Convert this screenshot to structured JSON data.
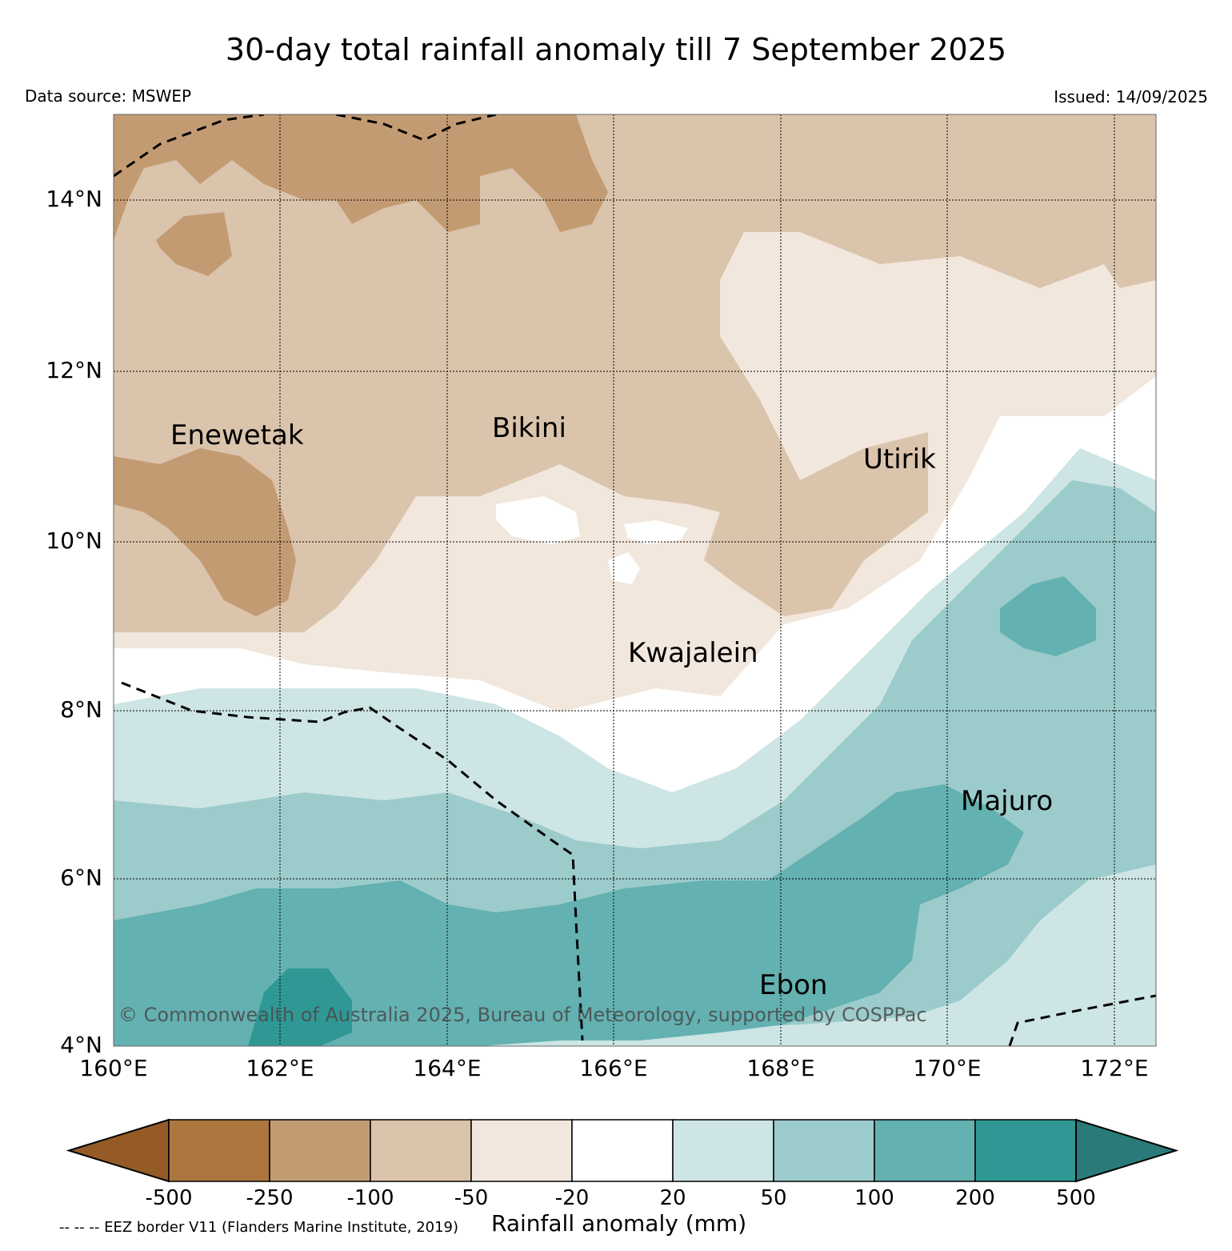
{
  "title": "30-day total rainfall anomaly till 7 September 2025",
  "data_source": "Data source: MSWEP",
  "issued": "Issued: 14/09/2025",
  "copyright": "© Commonwealth of Australia 2025, Bureau of Meteorology, supported by COSPPac",
  "map": {
    "lon_range": [
      160,
      172.5
    ],
    "lat_range": [
      4,
      15
    ],
    "lat_ticks": [
      "14°N",
      "12°N",
      "10°N",
      "8°N",
      "6°N",
      "4°N"
    ],
    "lon_ticks": [
      "160°E",
      "162°E",
      "164°E",
      "166°E",
      "168°E",
      "170°E",
      "172°E"
    ],
    "places": [
      {
        "name": "Enewetak",
        "lon": 162.3,
        "lat": 11.3
      },
      {
        "name": "Bikini",
        "lon": 165.5,
        "lat": 11.6
      },
      {
        "name": "Utirik",
        "lon": 169.8,
        "lat": 11.2
      },
      {
        "name": "Kwajalein",
        "lon": 167.7,
        "lat": 8.7
      },
      {
        "name": "Majuro",
        "lon": 171.2,
        "lat": 7.1
      },
      {
        "name": "Ebon",
        "lon": 168.6,
        "lat": 4.6
      }
    ]
  },
  "colorbar": {
    "label": "Rainfall anomaly (mm)",
    "ticks": [
      "-500",
      "-250",
      "-100",
      "-50",
      "-20",
      "20",
      "50",
      "100",
      "200",
      "500"
    ],
    "colors": [
      "#955b27",
      "#ad763e",
      "#c39b73",
      "#dbc4ac",
      "#f1e7dd",
      "#ffffff",
      "#cde5e4",
      "#9ccbcb",
      "#63b1b0",
      "#309894",
      "#2a7a79"
    ]
  },
  "eez_note": "-- -- -- EEZ border V11 (Flanders Marine Institute, 2019)"
}
